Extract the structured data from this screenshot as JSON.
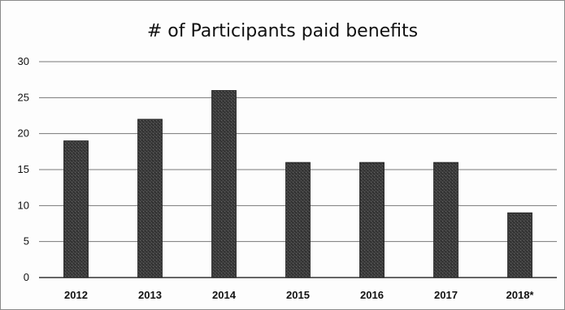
{
  "chart_data": {
    "type": "bar",
    "title": "# of Participants paid benefits",
    "categories": [
      "2012",
      "2013",
      "2014",
      "2015",
      "2016",
      "2017",
      "2018*"
    ],
    "values": [
      19,
      22,
      26,
      16,
      16,
      16,
      9
    ],
    "ylim": [
      0,
      30
    ],
    "yticks": [
      0,
      5,
      10,
      15,
      20,
      25,
      30
    ],
    "grid": true,
    "bar_color": "#3a3a3a",
    "grid_color": "#777777"
  }
}
